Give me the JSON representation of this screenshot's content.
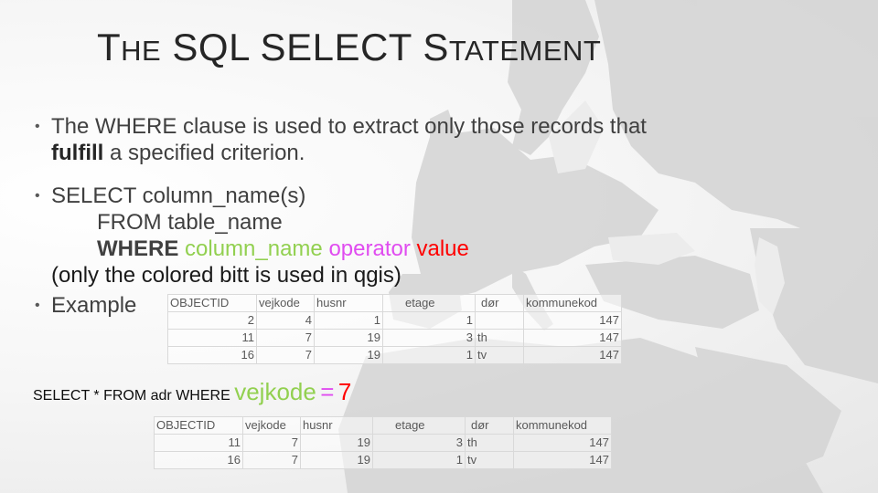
{
  "title": {
    "part1_initial": "T",
    "part1_rest": "HE",
    "part2": "SQL SELECT",
    "part3_initial": "S",
    "part3_rest": "TATEMENT"
  },
  "bullets": {
    "b1": {
      "line1": "The WHERE clause is used to extract only those records that",
      "line2_bold": "fulfill",
      "line2_rest": " a specified criterion."
    },
    "b2": {
      "line1": "SELECT column_name(s)",
      "line2": "FROM table_name",
      "line3_where": "WHERE",
      "line3_column": "column_name",
      "line3_operator": "operator",
      "line3_value": "value",
      "line4": "(only the colored bitt is used in qgis)"
    },
    "b3": {
      "label": "Example"
    }
  },
  "table_full": {
    "headers": [
      "OBJECTID",
      "vejkode",
      "husnr",
      "etage",
      "dør",
      "kommunekod"
    ],
    "rows": [
      [
        "2",
        "4",
        "1",
        "1",
        "",
        "147"
      ],
      [
        "11",
        "7",
        "19",
        "3",
        "th",
        "147"
      ],
      [
        "16",
        "7",
        "19",
        "1",
        "tv",
        "147"
      ]
    ]
  },
  "query": {
    "prefix": "SELECT * FROM adr WHERE",
    "column": "vejkode",
    "operator": "=",
    "value": "7"
  },
  "table_result": {
    "headers": [
      "OBJECTID",
      "vejkode",
      "husnr",
      "etage",
      "dør",
      "kommunekod"
    ],
    "rows": [
      [
        "11",
        "7",
        "19",
        "3",
        "th",
        "147"
      ],
      [
        "16",
        "7",
        "19",
        "1",
        "tv",
        "147"
      ]
    ]
  },
  "colors": {
    "column": "#92d050",
    "operator": "#e04cf0",
    "value": "#ff0000",
    "map": "#d6d6d6"
  }
}
